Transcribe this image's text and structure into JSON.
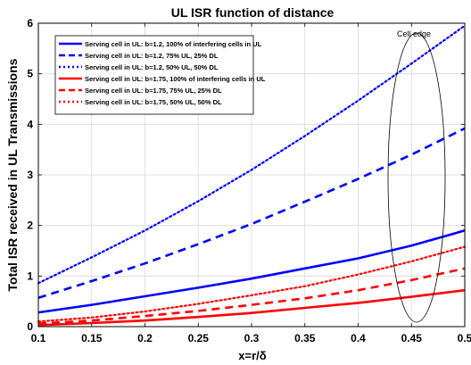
{
  "chart_data": {
    "type": "line",
    "title": "UL ISR function of distance",
    "xlabel": "x=r/δ",
    "ylabel": "Total ISR received in UL Transmissions",
    "xlim": [
      0.1,
      0.5
    ],
    "ylim": [
      0,
      6
    ],
    "xticks": [
      0.1,
      0.15,
      0.2,
      0.25,
      0.3,
      0.35,
      0.4,
      0.45,
      0.5
    ],
    "xtick_labels": [
      "0.1",
      "0.15",
      "0.2",
      "0.25",
      "0.3",
      "0.35",
      "0.4",
      "0.45",
      "0.5"
    ],
    "yticks": [
      0,
      1,
      2,
      3,
      4,
      5,
      6
    ],
    "ytick_labels": [
      "0",
      "1",
      "2",
      "3",
      "4",
      "5",
      "6"
    ],
    "grid": true,
    "legend_position": "top-left",
    "annotation": "Cell edge",
    "x": [
      0.1,
      0.15,
      0.2,
      0.25,
      0.3,
      0.35,
      0.4,
      0.45,
      0.5
    ],
    "series": [
      {
        "name": "Serving cell in UL: b=1.2, 100% of interfering cells in UL",
        "color": "#0000ff",
        "style": "solid",
        "values": [
          0.28,
          0.43,
          0.6,
          0.77,
          0.95,
          1.15,
          1.35,
          1.6,
          1.9
        ]
      },
      {
        "name": "Serving cell in UL: b=1.2, 75% UL, 25% DL",
        "color": "#0000ff",
        "style": "dashed",
        "values": [
          0.57,
          0.9,
          1.25,
          1.63,
          2.03,
          2.47,
          2.92,
          3.4,
          3.92
        ]
      },
      {
        "name": "Serving cell in UL: b=1.2, 50% UL, 50% DL",
        "color": "#0000ff",
        "style": "dotted",
        "values": [
          0.86,
          1.37,
          1.9,
          2.48,
          3.1,
          3.77,
          4.47,
          5.2,
          5.95
        ]
      },
      {
        "name": "Serving cell in UL: b=1.75, 100% of interfering cells in UL",
        "color": "#ff0000",
        "style": "solid",
        "values": [
          0.03,
          0.07,
          0.12,
          0.19,
          0.27,
          0.37,
          0.47,
          0.59,
          0.72
        ]
      },
      {
        "name": "Serving cell in UL: b=1.75, 75% UL, 25% DL",
        "color": "#ff0000",
        "style": "dashed",
        "values": [
          0.06,
          0.12,
          0.21,
          0.31,
          0.43,
          0.56,
          0.72,
          0.92,
          1.15
        ]
      },
      {
        "name": "Serving cell in UL: b=1.75, 50% UL, 50% DL",
        "color": "#ff0000",
        "style": "dotted",
        "values": [
          0.1,
          0.18,
          0.3,
          0.45,
          0.62,
          0.8,
          1.03,
          1.29,
          1.58
        ]
      }
    ]
  }
}
